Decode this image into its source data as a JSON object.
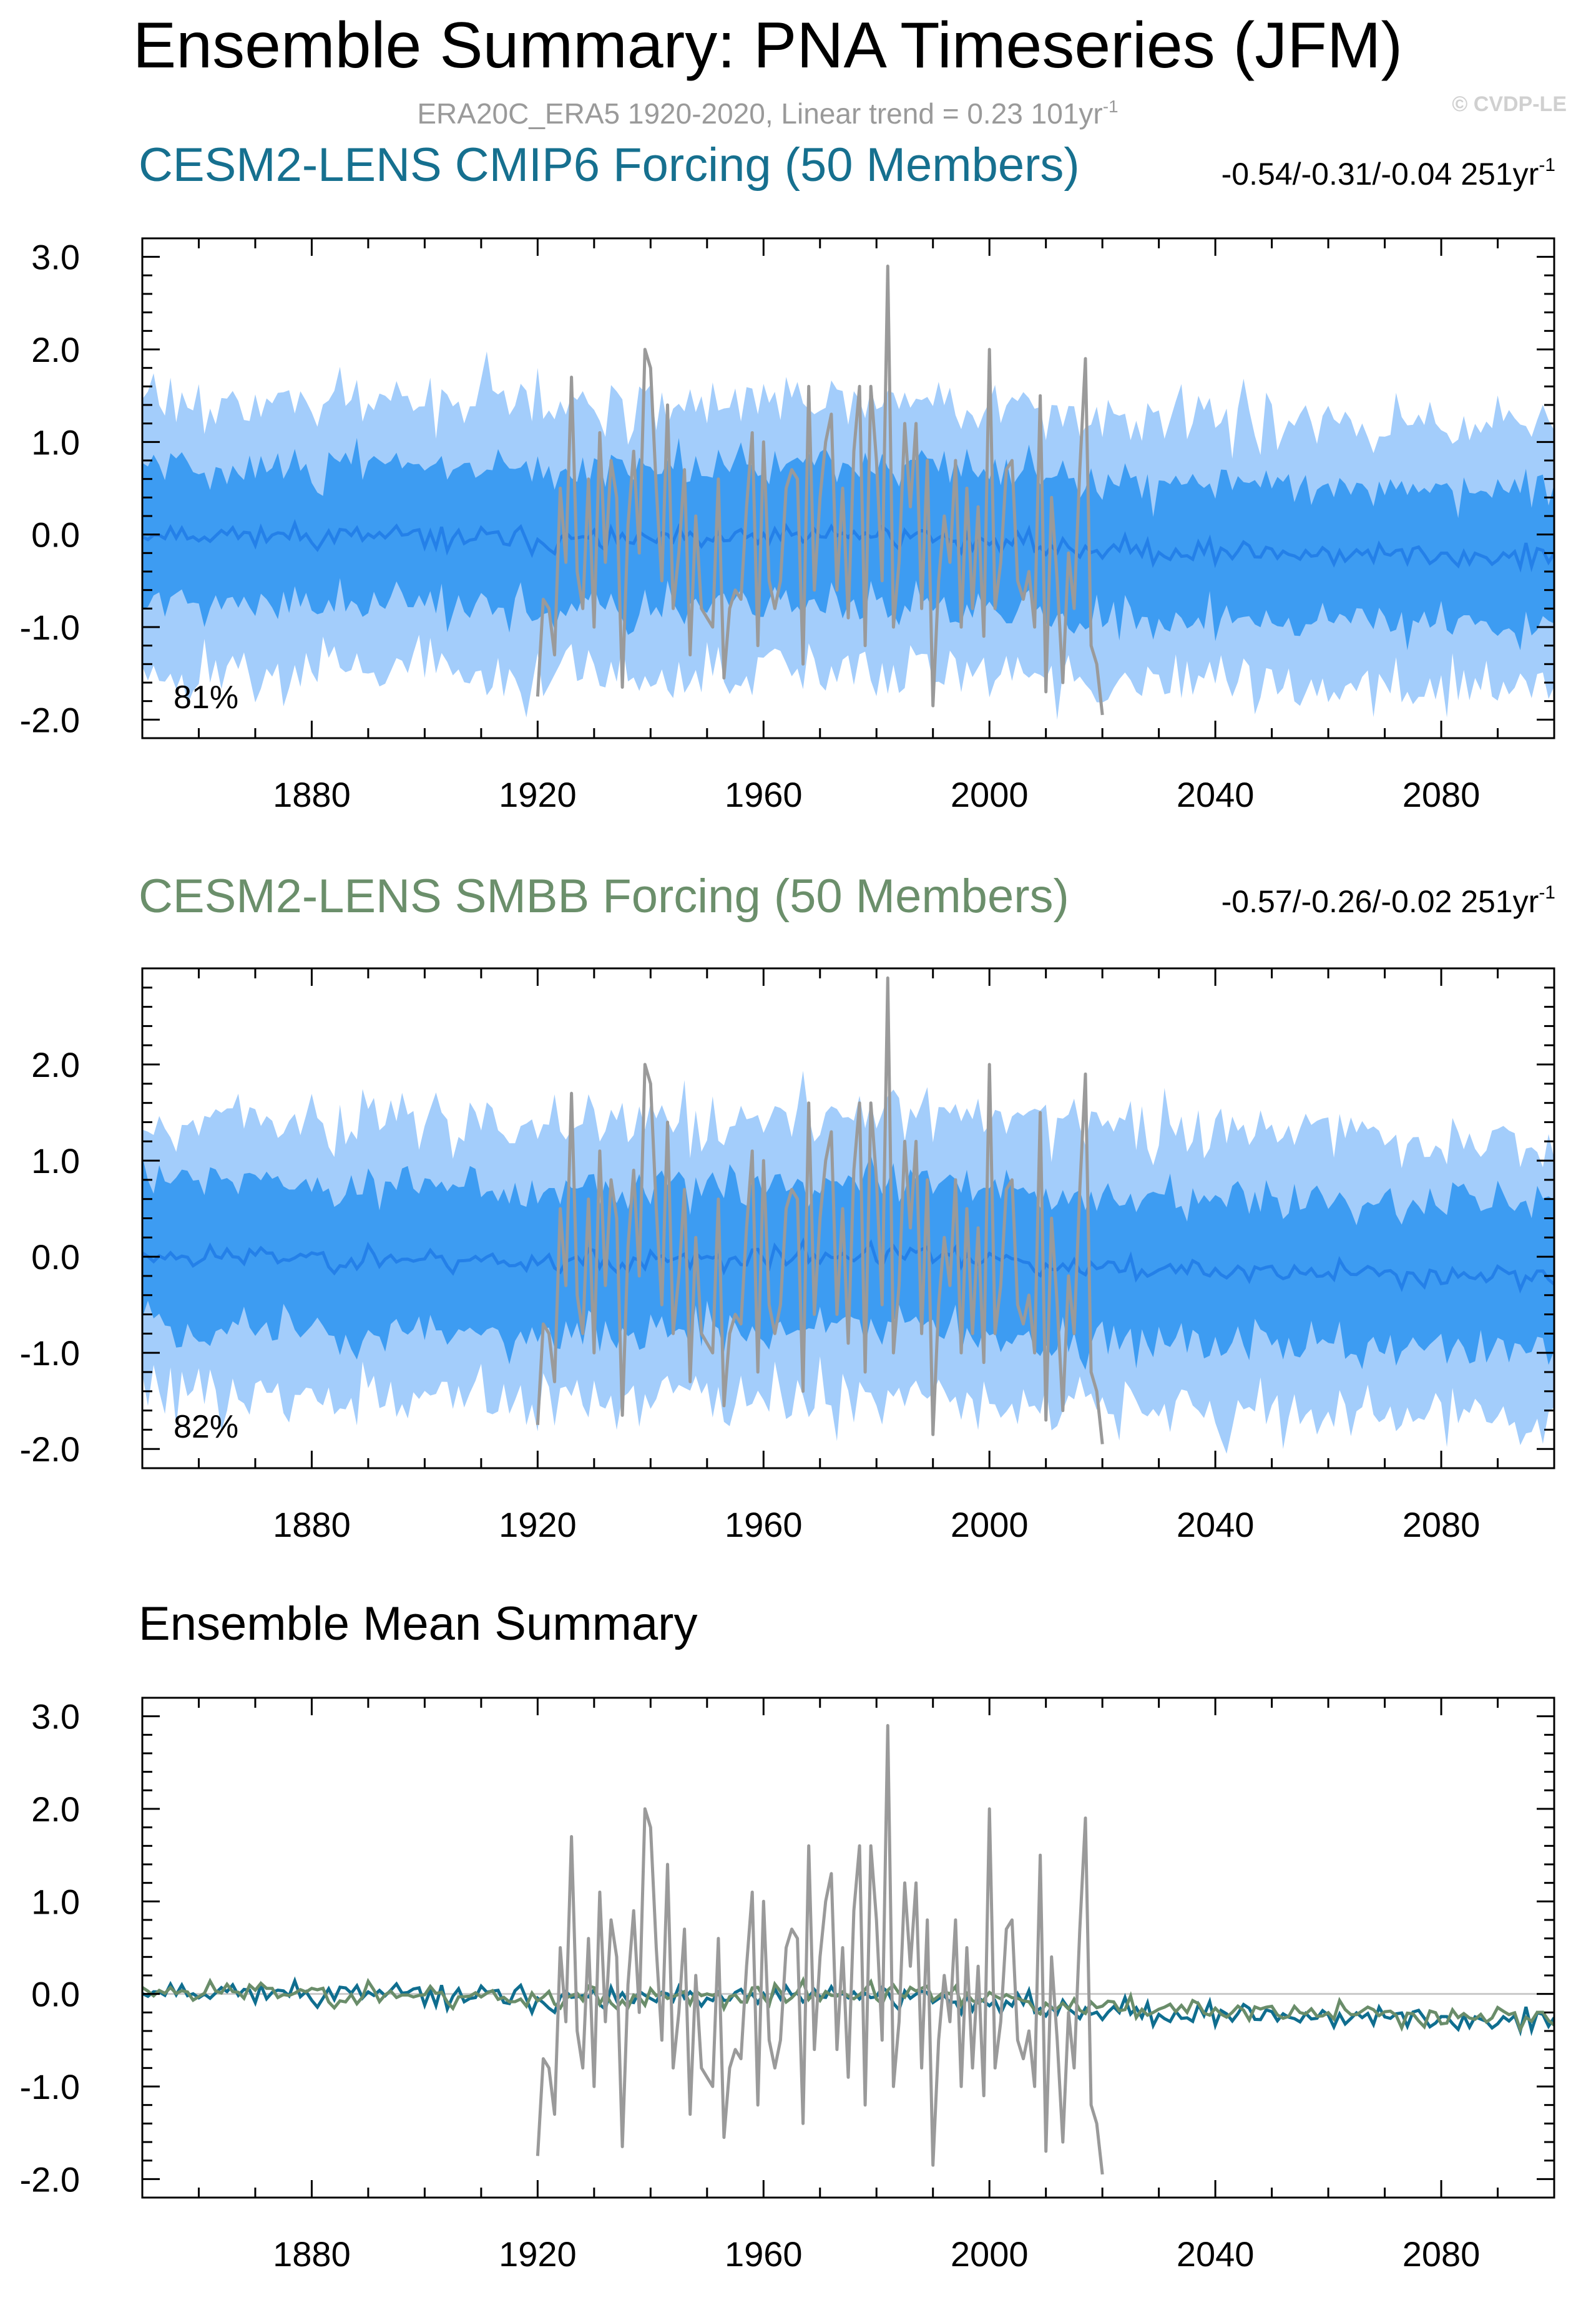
{
  "chart_data": {
    "title": "Ensemble Summary: PNA Timeseries (JFM)",
    "subtitle": "ERA20C_ERA5 1920-2020, Linear trend = 0.23 101yr",
    "subtitle_unit_sup": "-1",
    "copyright": "© CVDP-LE",
    "colors": {
      "obs": "#9a9a9a",
      "band_outer": "#a3cdfb",
      "band_inner": "#3d9cf2",
      "ens_mean": "#2480e8",
      "cmip6_mean": "#0f6e8f",
      "smbb_mean": "#6a8d6a",
      "cmip6_title": "#16708f",
      "smbb_title": "#6b8f6b",
      "zero_line": "#c8c8c8"
    },
    "x_range": [
      1850,
      2100
    ],
    "x_ticks": [
      "1880",
      "1920",
      "1960",
      "2000",
      "2040",
      "2080"
    ],
    "x_tick_values": [
      1880,
      1920,
      1960,
      2000,
      2040,
      2080
    ],
    "observations": {
      "name": "ERA20C_ERA5",
      "x": [
        1920,
        1921,
        1922,
        1923,
        1924,
        1925,
        1926,
        1927,
        1928,
        1929,
        1930,
        1931,
        1932,
        1933,
        1934,
        1935,
        1936,
        1937,
        1938,
        1939,
        1940,
        1941,
        1942,
        1943,
        1944,
        1945,
        1946,
        1947,
        1948,
        1949,
        1950,
        1951,
        1952,
        1953,
        1954,
        1955,
        1956,
        1957,
        1958,
        1959,
        1960,
        1961,
        1962,
        1963,
        1964,
        1965,
        1966,
        1967,
        1968,
        1969,
        1970,
        1971,
        1972,
        1973,
        1974,
        1975,
        1976,
        1977,
        1978,
        1979,
        1980,
        1981,
        1982,
        1983,
        1984,
        1985,
        1986,
        1987,
        1988,
        1989,
        1990,
        1991,
        1992,
        1993,
        1994,
        1995,
        1996,
        1997,
        1998,
        1999,
        2000,
        2001,
        2002,
        2003,
        2004,
        2005,
        2006,
        2007,
        2008,
        2009,
        2010,
        2011,
        2012,
        2013,
        2014,
        2015,
        2016,
        2017,
        2018,
        2019,
        2020
      ],
      "values": [
        -1.75,
        -0.7,
        -0.8,
        -1.3,
        0.5,
        -0.3,
        1.7,
        -0.4,
        -0.8,
        0.6,
        -1.0,
        1.1,
        -0.3,
        0.8,
        0.4,
        -1.65,
        0.1,
        0.9,
        -0.2,
        2.0,
        1.8,
        0.5,
        -0.5,
        1.4,
        -0.8,
        -0.2,
        0.7,
        -1.3,
        0.2,
        -0.8,
        -0.9,
        -1.0,
        0.6,
        -1.55,
        -0.8,
        -0.6,
        -0.7,
        0.3,
        1.1,
        -1.2,
        1.0,
        -0.5,
        -0.8,
        -0.5,
        0.5,
        0.7,
        0.6,
        -1.4,
        1.6,
        -0.6,
        0.4,
        1.0,
        1.3,
        -0.6,
        0.5,
        -0.9,
        0.9,
        1.6,
        -1.2,
        1.6,
        0.8,
        -0.5,
        2.9,
        -1.0,
        -0.3,
        1.2,
        0.3,
        1.2,
        -0.8,
        0.8,
        -1.85,
        -0.5,
        0.2,
        -0.3,
        0.8,
        -1.0,
        0.5,
        -0.8,
        0.3,
        -1.1,
        2.0,
        -0.8,
        -0.3,
        0.7,
        0.8,
        -0.5,
        -0.7,
        -0.4,
        -1.0,
        1.5,
        -1.7,
        0.4,
        -0.5,
        -1.6,
        -0.2,
        -0.8,
        0.7,
        1.9,
        -1.2,
        -1.4,
        -1.95
      ]
    },
    "panels": [
      {
        "type": "line",
        "title": "CESM2-LENS CMIP6 Forcing (50 Members)",
        "stat": "-0.54/-0.31/-0.04 251yr",
        "stat_unit_sup": "-1",
        "percent": "81%",
        "ylim": [
          -2.2,
          3.2
        ],
        "y_ticks": [
          "3.0",
          "2.0",
          "1.0",
          "0.0",
          "-1.0",
          "-2.0"
        ],
        "y_tick_values": [
          3.0,
          2.0,
          1.0,
          0.0,
          -1.0,
          -2.0
        ],
        "band_p10_p90_halfwidth": 0.75,
        "band_min_max_halfwidth": 1.45,
        "trend_start": 0.02,
        "trend_end": -0.25,
        "seed": 11
      },
      {
        "type": "line",
        "title": "CESM2-LENS SMBB Forcing (50 Members)",
        "stat": "-0.57/-0.26/-0.02 251yr",
        "stat_unit_sup": "-1",
        "percent": "82%",
        "ylim": [
          -2.2,
          3.0
        ],
        "y_ticks": [
          "2.0",
          "1.0",
          "0.0",
          "-1.0",
          "-2.0"
        ],
        "y_tick_values": [
          2.0,
          1.0,
          0.0,
          -1.0,
          -2.0
        ],
        "band_p10_p90_halfwidth": 0.75,
        "band_min_max_halfwidth": 1.45,
        "trend_start": 0.02,
        "trend_end": -0.2,
        "seed": 23
      },
      {
        "type": "line",
        "title": "Ensemble Mean Summary",
        "stat": "",
        "stat_unit_sup": "",
        "percent": "",
        "ylim": [
          -2.2,
          3.2
        ],
        "y_ticks": [
          "3.0",
          "2.0",
          "1.0",
          "0.0",
          "-1.0",
          "-2.0"
        ],
        "y_tick_values": [
          3.0,
          2.0,
          1.0,
          0.0,
          -1.0,
          -2.0
        ],
        "series": [
          {
            "name": "CESM2-LENS CMIP6 Forcing",
            "trend_start": 0.05,
            "trend_end": -0.3,
            "seed": 11
          },
          {
            "name": "CESM2-LENS SMBB Forcing",
            "trend_start": 0.05,
            "trend_end": -0.25,
            "seed": 23
          }
        ]
      }
    ]
  }
}
